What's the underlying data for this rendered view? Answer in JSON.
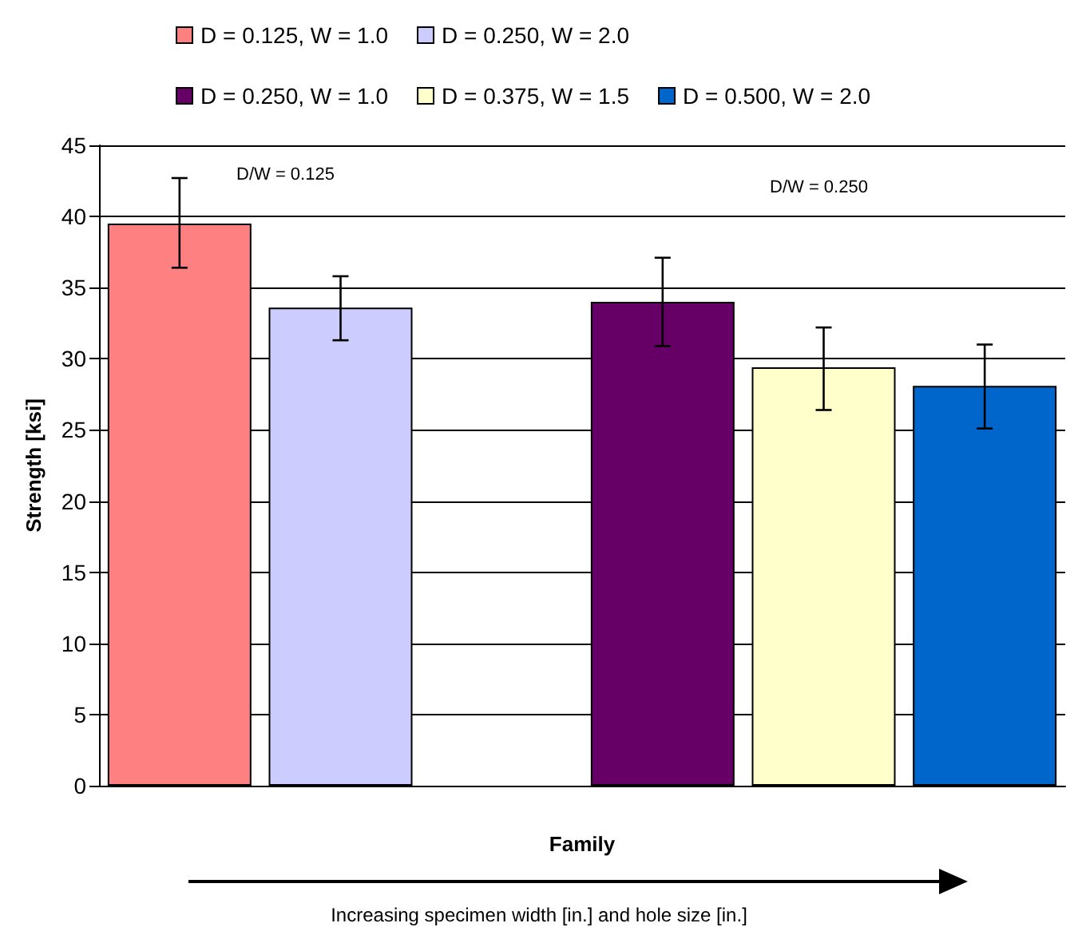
{
  "chart_data": {
    "type": "bar",
    "stacked": true,
    "xlabel": "Family",
    "ylabel": "Strength [ksi]",
    "categories": [
      null,
      null,
      null,
      null,
      null,
      null
    ],
    "ylim": [
      0,
      45
    ],
    "yticks": [
      0,
      5,
      10,
      15,
      20,
      25,
      30,
      35,
      40,
      45
    ],
    "grid": "y",
    "legend": "top",
    "series": [
      {
        "name": "D = 0.125, W = 1.0",
        "color": "#ff8080",
        "values": [
          39.5,
          null,
          null,
          null,
          null,
          null
        ],
        "errors": [
          [
            36.4,
            42.7
          ],
          null,
          null,
          null,
          null,
          null
        ]
      },
      {
        "name": "D = 0.250, W = 2.0",
        "color": "#ccccff",
        "values": [
          null,
          33.6,
          null,
          null,
          null,
          null
        ],
        "errors": [
          null,
          [
            31.3,
            35.8
          ],
          null,
          null,
          null,
          null
        ]
      },
      {
        "name": "D = 0.250, W = 1.0",
        "color": "#660066",
        "values": [
          null,
          null,
          null,
          34.0,
          null,
          null
        ],
        "errors": [
          null,
          null,
          null,
          [
            30.9,
            37.1
          ],
          null,
          null
        ]
      },
      {
        "name": "D = 0.375, W = 1.5",
        "color": "#ffffcc",
        "values": [
          null,
          null,
          null,
          null,
          29.4,
          null
        ],
        "errors": [
          null,
          null,
          null,
          null,
          [
            26.4,
            32.2
          ],
          null
        ]
      },
      {
        "name": "D = 0.500, W = 2.0",
        "color": "#0066cc",
        "values": [
          null,
          null,
          null,
          null,
          null,
          28.1
        ],
        "errors": [
          null,
          null,
          null,
          null,
          null,
          [
            25.1,
            31.0
          ]
        ]
      }
    ],
    "annotations": [
      "D/W = 0.125",
      "D/W = 0.250",
      "Increasing specimen width [in.] and hole size [in.]"
    ]
  }
}
